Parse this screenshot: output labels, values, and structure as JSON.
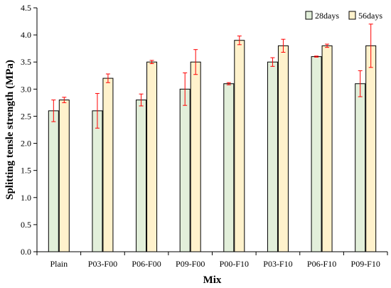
{
  "chart_data": {
    "type": "bar",
    "title": "",
    "xlabel": "Mix",
    "ylabel": "Splitting tensle strength (MPa)",
    "ylim": [
      0,
      4.5
    ],
    "ytick_step": 0.5,
    "ytick_labels": [
      "0.0",
      "0.5",
      "1.0",
      "1.5",
      "2.0",
      "2.5",
      "3.0",
      "3.5",
      "4.0",
      "4.5"
    ],
    "categories": [
      "Plain",
      "P03-F00",
      "P06-F00",
      "P09-F00",
      "P00-F10",
      "P03-F10",
      "P06-F10",
      "P09-F10"
    ],
    "series": [
      {
        "name": "28days",
        "color": "#e2efda",
        "values": [
          2.6,
          2.6,
          2.8,
          3.0,
          3.1,
          3.5,
          3.6,
          3.1
        ],
        "errors": [
          0.2,
          0.32,
          0.11,
          0.3,
          0.02,
          0.08,
          0.01,
          0.24
        ]
      },
      {
        "name": "56days",
        "color": "#fff2cc",
        "values": [
          2.8,
          3.2,
          3.5,
          3.5,
          3.9,
          3.8,
          3.8,
          3.8
        ],
        "errors": [
          0.05,
          0.08,
          0.03,
          0.23,
          0.08,
          0.12,
          0.03,
          0.4
        ]
      }
    ],
    "error_bar_color": "#ff0000",
    "grid": false,
    "legend_position": "top-right"
  }
}
